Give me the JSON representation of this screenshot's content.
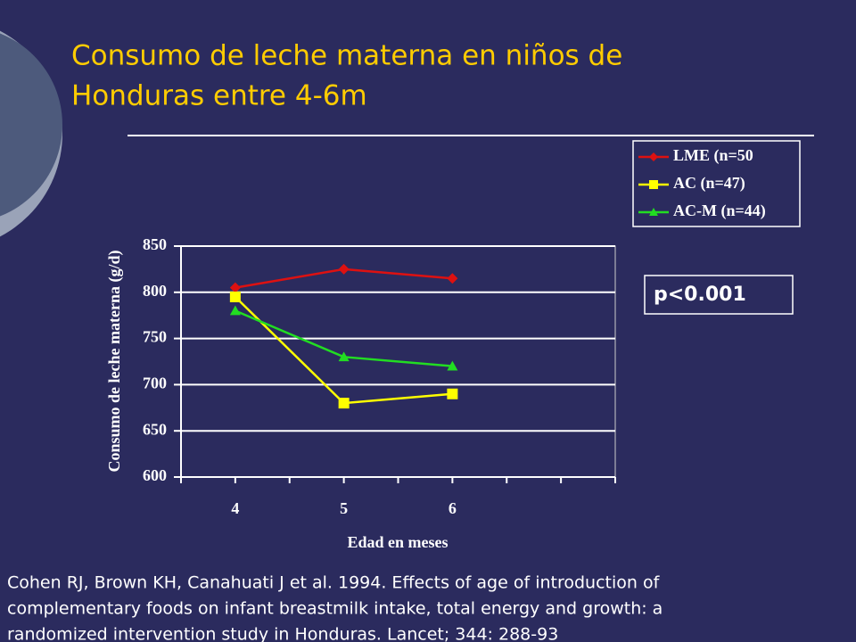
{
  "slide": {
    "title": [
      "Consumo de leche materna en niños de",
      "Honduras entre 4-6m"
    ],
    "citation": [
      "Cohen RJ, Brown KH, Canahuati J et al. 1994. Effects of age of introduction of",
      "complementary foods on infant breastmilk intake, total energy and growth: a",
      "randomized intervention study in Honduras. Lancet; 344: 288-93"
    ]
  },
  "chart_data": {
    "type": "line",
    "xlabel": "Edad en meses",
    "ylabel": "Consumo de leche materna (g/d)",
    "annotation": "p<0.001",
    "categories": [
      "4",
      "5",
      "6",
      null
    ],
    "series": [
      {
        "name": "LME (n=50",
        "color": "#dd1111",
        "marker": "diamond",
        "values": [
          805,
          825,
          815,
          null
        ]
      },
      {
        "name": "AC (n=47)",
        "color": "#ffff00",
        "marker": "square",
        "values": [
          795,
          680,
          690,
          null
        ]
      },
      {
        "name": "AC-M (n=44)",
        "color": "#22dd22",
        "marker": "triangle",
        "values": [
          780,
          730,
          720,
          null
        ]
      }
    ],
    "ylim": [
      600,
      850
    ],
    "yticks": [
      600,
      650,
      700,
      750,
      800,
      850
    ],
    "grid": true,
    "legend": "upper right"
  }
}
